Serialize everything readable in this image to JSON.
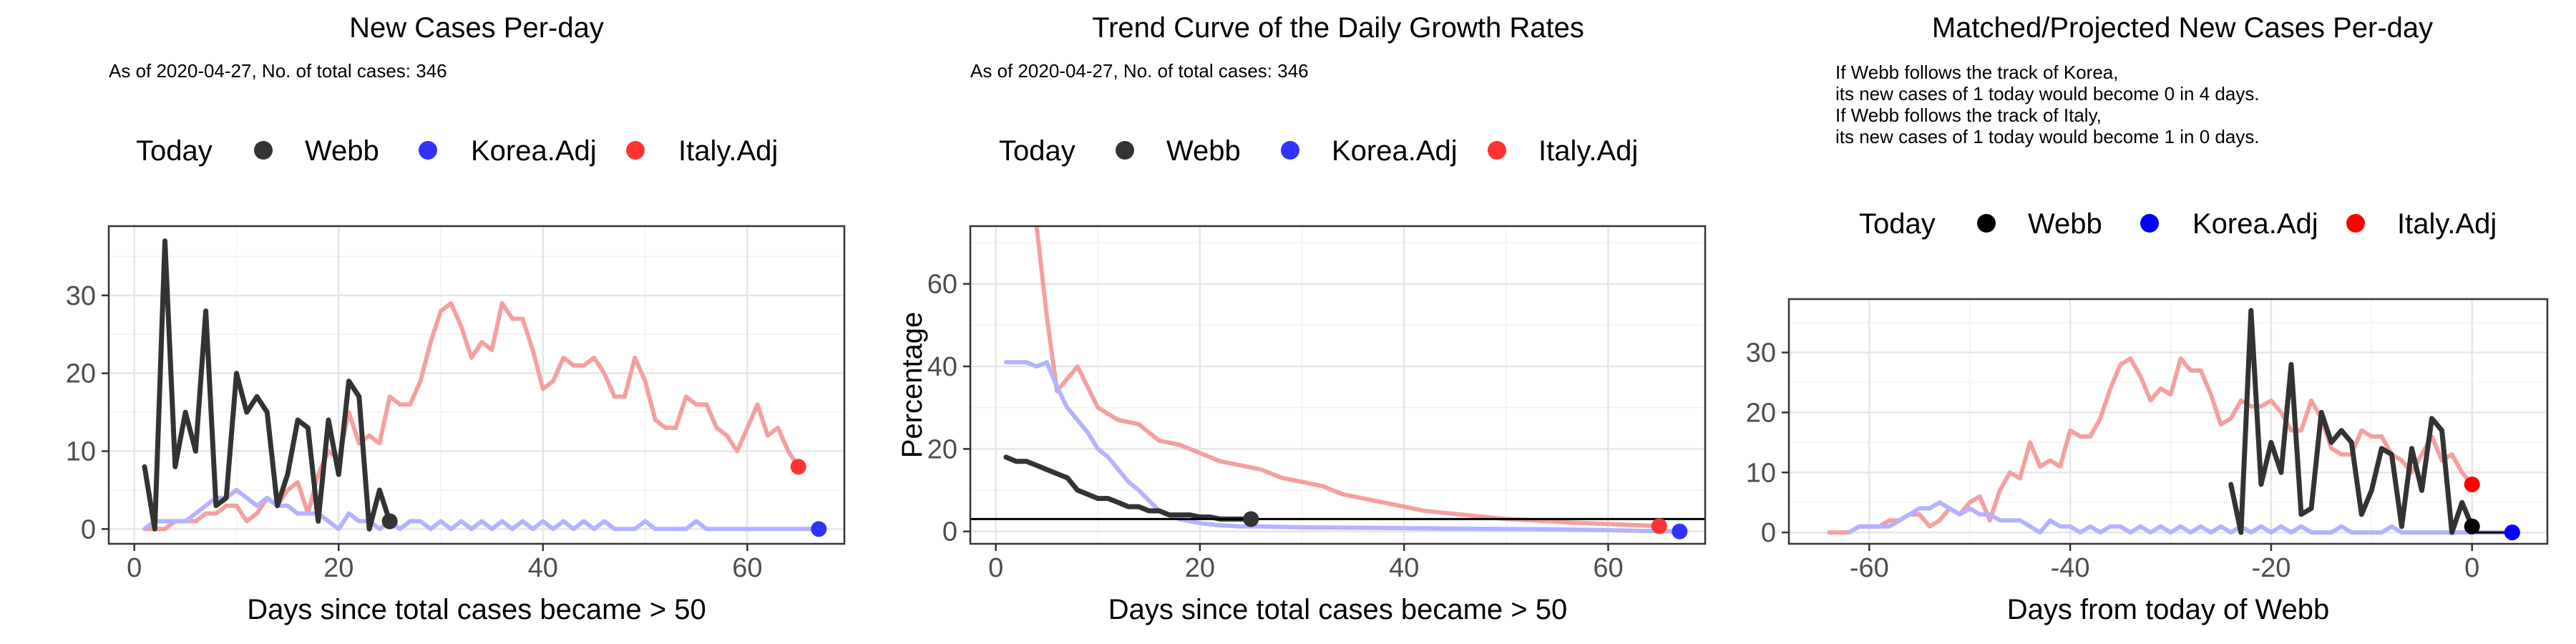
{
  "chart_data": [
    {
      "type": "line",
      "title": "New Cases Per-day",
      "subtitle": [
        "As of 2020-04-27, No. of total cases: 346"
      ],
      "xlabel": "Days since total cases became > 50",
      "ylabel": "",
      "xlim": [
        -2.5,
        69.5
      ],
      "ylim": [
        -1.9,
        38.9
      ],
      "xticks": [
        0,
        20,
        40,
        60
      ],
      "yticks": [
        0,
        10,
        20,
        30
      ],
      "grid": true,
      "legend": {
        "position": "top",
        "title": "Today",
        "entries": [
          {
            "label": "Webb",
            "color": "#333333"
          },
          {
            "label": "Korea.Adj",
            "color": "#3333ff"
          },
          {
            "label": "Italy.Adj",
            "color": "#ff3333"
          }
        ]
      },
      "series": [
        {
          "name": "Italy.Adj",
          "color": "#f4a0a0",
          "x": [
            1,
            2,
            3,
            4,
            5,
            6,
            7,
            8,
            9,
            10,
            11,
            12,
            13,
            14,
            15,
            16,
            17,
            18,
            19,
            20,
            21,
            22,
            23,
            24,
            25,
            26,
            27,
            28,
            29,
            30,
            31,
            32,
            33,
            34,
            35,
            36,
            37,
            38,
            39,
            40,
            41,
            42,
            43,
            44,
            45,
            46,
            47,
            48,
            49,
            50,
            51,
            52,
            53,
            54,
            55,
            56,
            57,
            58,
            59,
            60,
            61,
            62,
            63,
            64,
            65
          ],
          "y": [
            0,
            0,
            0,
            1,
            1,
            1,
            2,
            2,
            3,
            3,
            1,
            2,
            4,
            3,
            5,
            6,
            2,
            7,
            10,
            9,
            15,
            11,
            12,
            11,
            17,
            16,
            16,
            19,
            24,
            28,
            29,
            26,
            22,
            24,
            23,
            29,
            27,
            27,
            23,
            18,
            19,
            22,
            21,
            21,
            22,
            20,
            17,
            17,
            22,
            19,
            14,
            13,
            13,
            17,
            16,
            16,
            13,
            12,
            10,
            13,
            16,
            12,
            13,
            10,
            8
          ]
        },
        {
          "name": "Korea.Adj",
          "color": "#b3b3ff",
          "x": [
            1,
            2,
            3,
            4,
            5,
            6,
            7,
            8,
            9,
            10,
            11,
            12,
            13,
            14,
            15,
            16,
            17,
            18,
            19,
            20,
            21,
            22,
            23,
            24,
            25,
            26,
            27,
            28,
            29,
            30,
            31,
            32,
            33,
            34,
            35,
            36,
            37,
            38,
            39,
            40,
            41,
            42,
            43,
            44,
            45,
            46,
            47,
            48,
            49,
            50,
            51,
            52,
            53,
            54,
            55,
            56,
            57,
            58,
            59,
            60,
            61,
            62,
            63,
            64,
            65,
            66,
            67
          ],
          "y": [
            0,
            1,
            1,
            1,
            1,
            2,
            3,
            4,
            4,
            5,
            4,
            3,
            4,
            3,
            3,
            2,
            2,
            2,
            1,
            0,
            2,
            1,
            1,
            0,
            1,
            0,
            1,
            1,
            0,
            1,
            0,
            1,
            0,
            1,
            0,
            1,
            0,
            1,
            0,
            1,
            0,
            1,
            0,
            1,
            0,
            1,
            0,
            0,
            0,
            1,
            0,
            0,
            0,
            0,
            1,
            0,
            0,
            0,
            0,
            0,
            0,
            0,
            0,
            0,
            0,
            0,
            0
          ]
        },
        {
          "name": "Webb",
          "color": "#333333",
          "x": [
            1,
            2,
            3,
            4,
            5,
            6,
            7,
            8,
            9,
            10,
            11,
            12,
            13,
            14,
            15,
            16,
            17,
            18,
            19,
            20,
            21,
            22,
            23,
            24,
            25
          ],
          "y": [
            8,
            0,
            37,
            8,
            15,
            10,
            28,
            3,
            4,
            20,
            15,
            17,
            15,
            3,
            7,
            14,
            13,
            1,
            14,
            7,
            19,
            17,
            0,
            5,
            1
          ]
        }
      ],
      "today_points": [
        {
          "series": "Webb",
          "x": 25,
          "y": 1,
          "color": "#333333"
        },
        {
          "series": "Korea.Adj",
          "x": 67,
          "y": 0,
          "color": "#3333ff"
        },
        {
          "series": "Italy.Adj",
          "x": 65,
          "y": 8,
          "color": "#ff3333"
        }
      ]
    },
    {
      "type": "line",
      "title": "Trend Curve of the Daily Growth Rates",
      "subtitle": [
        "As of 2020-04-27, No. of total cases: 346"
      ],
      "xlabel": "Days since total cases became > 50",
      "ylabel": "Percentage",
      "xlim": [
        -2.5,
        69.5
      ],
      "ylim": [
        -3,
        74
      ],
      "xticks": [
        0,
        20,
        40,
        60
      ],
      "yticks": [
        0,
        20,
        40,
        60
      ],
      "grid": true,
      "hline": 3,
      "legend": {
        "position": "top",
        "title": "Today",
        "entries": [
          {
            "label": "Webb",
            "color": "#333333"
          },
          {
            "label": "Korea.Adj",
            "color": "#3333ff"
          },
          {
            "label": "Italy.Adj",
            "color": "#ff3333"
          }
        ]
      },
      "series": [
        {
          "name": "Italy.Adj",
          "color": "#f4a0a0",
          "x": [
            1,
            4,
            5,
            6,
            7,
            8,
            10,
            12,
            14,
            16,
            18,
            20,
            22,
            24,
            26,
            28,
            30,
            32,
            34,
            36,
            38,
            40,
            42,
            44,
            46,
            48,
            50,
            52,
            54,
            56,
            58,
            60,
            62,
            64,
            65
          ],
          "y": [
            80,
            74,
            52,
            34,
            37,
            40,
            30,
            27,
            26,
            22,
            21,
            19,
            17,
            16,
            15,
            13,
            12,
            11,
            9,
            8,
            7,
            6,
            5,
            4.5,
            4,
            3.5,
            3,
            2.8,
            2.5,
            2.2,
            2,
            1.8,
            1.6,
            1.4,
            1.3
          ]
        },
        {
          "name": "Korea.Adj",
          "color": "#b3b3ff",
          "x": [
            1,
            2,
            3,
            4,
            5,
            6,
            7,
            8,
            9,
            10,
            11,
            12,
            13,
            14,
            16,
            18,
            20,
            22,
            24,
            26,
            28,
            30,
            35,
            40,
            45,
            50,
            55,
            60,
            64,
            67
          ],
          "y": [
            41,
            41,
            41,
            40,
            41,
            35,
            30,
            27,
            24,
            20,
            18,
            15,
            12,
            10,
            5,
            3,
            2,
            1.5,
            1.2,
            1.2,
            1.1,
            1,
            0.9,
            0.8,
            0.7,
            0.6,
            0.5,
            0.3,
            0.1,
            0
          ]
        },
        {
          "name": "Webb",
          "color": "#333333",
          "x": [
            1,
            2,
            3,
            4,
            5,
            6,
            7,
            8,
            9,
            10,
            11,
            12,
            13,
            14,
            15,
            16,
            17,
            18,
            19,
            20,
            21,
            22,
            23,
            24,
            25
          ],
          "y": [
            18,
            17,
            17,
            16,
            15,
            14,
            13,
            10,
            9,
            8,
            8,
            7,
            6,
            6,
            5,
            5,
            4,
            4,
            4,
            3.5,
            3.5,
            3,
            3,
            3,
            3
          ]
        }
      ],
      "today_points": [
        {
          "series": "Webb",
          "x": 25,
          "y": 3,
          "color": "#333333"
        },
        {
          "series": "Korea.Adj",
          "x": 67,
          "y": 0,
          "color": "#3333ff"
        },
        {
          "series": "Italy.Adj",
          "x": 65,
          "y": 1.3,
          "color": "#ff3333"
        }
      ]
    },
    {
      "type": "line",
      "title": "Matched/Projected New Cases Per-day",
      "subtitle": [
        "If Webb follows the track of Korea,",
        "its new cases of 1 today would become 0 in 4 days.",
        "If Webb follows the track of Italy,",
        "its new cases of 1 today would become 1 in 0 days."
      ],
      "xlabel": "Days from today of Webb",
      "ylabel": "",
      "xlim": [
        -68,
        7.5
      ],
      "ylim": [
        -1.9,
        38.9
      ],
      "xticks": [
        -60,
        -40,
        -20,
        0
      ],
      "yticks": [
        0,
        10,
        20,
        30
      ],
      "grid": true,
      "legend": {
        "position": "top",
        "title": "Today",
        "entries": [
          {
            "label": "Webb",
            "color": "#000000"
          },
          {
            "label": "Korea.Adj",
            "color": "#0000ff"
          },
          {
            "label": "Italy.Adj",
            "color": "#ff0000"
          }
        ]
      },
      "series": [
        {
          "name": "Italy.Adj",
          "color": "#f4a0a0",
          "x": [
            -64,
            -63,
            -62,
            -61,
            -60,
            -59,
            -58,
            -57,
            -56,
            -55,
            -54,
            -53,
            -52,
            -51,
            -50,
            -49,
            -48,
            -47,
            -46,
            -45,
            -44,
            -43,
            -42,
            -41,
            -40,
            -39,
            -38,
            -37,
            -36,
            -35,
            -34,
            -33,
            -32,
            -31,
            -30,
            -29,
            -28,
            -27,
            -26,
            -25,
            -24,
            -23,
            -22,
            -21,
            -20,
            -19,
            -18,
            -17,
            -16,
            -15,
            -14,
            -13,
            -12,
            -11,
            -10,
            -9,
            -8,
            -7,
            -6,
            -5,
            -4,
            -3,
            -2,
            -1,
            0
          ],
          "y": [
            0,
            0,
            0,
            1,
            1,
            1,
            2,
            2,
            3,
            3,
            1,
            2,
            4,
            3,
            5,
            6,
            2,
            7,
            10,
            9,
            15,
            11,
            12,
            11,
            17,
            16,
            16,
            19,
            24,
            28,
            29,
            26,
            22,
            24,
            23,
            29,
            27,
            27,
            23,
            18,
            19,
            22,
            21,
            21,
            22,
            20,
            17,
            17,
            22,
            19,
            14,
            13,
            13,
            17,
            16,
            16,
            13,
            12,
            10,
            13,
            16,
            12,
            13,
            10,
            8
          ]
        },
        {
          "name": "Korea.Adj",
          "color": "#b3b3ff",
          "x": [
            -62,
            -61,
            -60,
            -59,
            -58,
            -57,
            -56,
            -55,
            -54,
            -53,
            -52,
            -51,
            -50,
            -49,
            -48,
            -47,
            -46,
            -45,
            -44,
            -43,
            -42,
            -41,
            -40,
            -39,
            -38,
            -37,
            -36,
            -35,
            -34,
            -33,
            -32,
            -31,
            -30,
            -29,
            -28,
            -27,
            -26,
            -25,
            -24,
            -23,
            -22,
            -21,
            -20,
            -19,
            -18,
            -17,
            -16,
            -15,
            -14,
            -13,
            -12,
            -11,
            -10,
            -9,
            -8,
            -7,
            -6,
            -5,
            -4,
            -3,
            -2,
            -1,
            0,
            1,
            2,
            3,
            4
          ],
          "y": [
            0,
            1,
            1,
            1,
            1,
            2,
            3,
            4,
            4,
            5,
            4,
            3,
            4,
            3,
            3,
            2,
            2,
            2,
            1,
            0,
            2,
            1,
            1,
            0,
            1,
            0,
            1,
            1,
            0,
            1,
            0,
            1,
            0,
            1,
            0,
            1,
            0,
            1,
            0,
            1,
            0,
            1,
            0,
            1,
            0,
            1,
            0,
            0,
            0,
            1,
            0,
            0,
            0,
            0,
            1,
            0,
            0,
            0,
            0,
            0,
            0,
            0,
            0,
            0,
            0,
            0,
            0
          ]
        },
        {
          "name": "Webb",
          "color": "#333333",
          "x": [
            -24,
            -23,
            -22,
            -21,
            -20,
            -19,
            -18,
            -17,
            -16,
            -15,
            -14,
            -13,
            -12,
            -11,
            -10,
            -9,
            -8,
            -7,
            -6,
            -5,
            -4,
            -3,
            -2,
            -1,
            0
          ],
          "y": [
            8,
            0,
            37,
            8,
            15,
            10,
            28,
            3,
            4,
            20,
            15,
            17,
            15,
            3,
            7,
            14,
            13,
            1,
            14,
            7,
            19,
            17,
            0,
            5,
            1
          ]
        }
      ],
      "extra_lines": [
        {
          "color": "#000000",
          "x": [
            0,
            4
          ],
          "y": [
            0,
            0
          ]
        }
      ],
      "today_points": [
        {
          "series": "Webb",
          "x": 0,
          "y": 1,
          "color": "#000000"
        },
        {
          "series": "Korea.Adj",
          "x": 4,
          "y": 0,
          "color": "#0000ff"
        },
        {
          "series": "Italy.Adj",
          "x": 0,
          "y": 8,
          "color": "#ff0000"
        }
      ]
    }
  ]
}
